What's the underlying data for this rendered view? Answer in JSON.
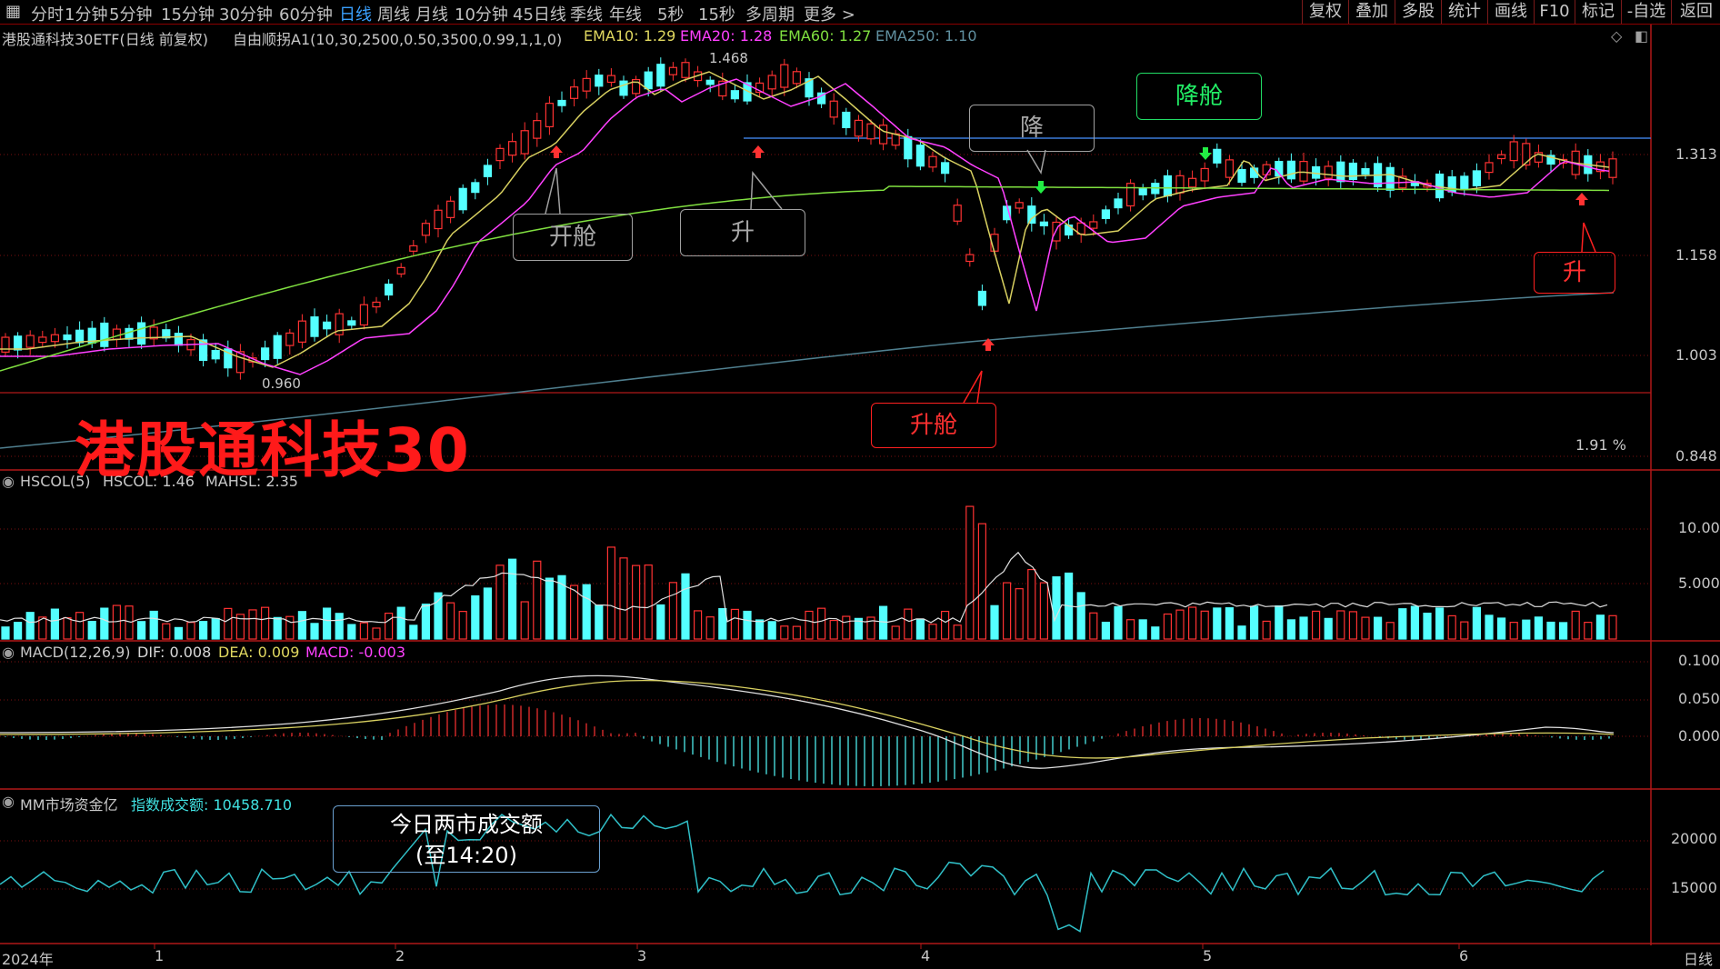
{
  "toolbar": {
    "periods": [
      "分时",
      "1分钟",
      "5分钟",
      "15分钟",
      "30分钟",
      "60分钟",
      "日线",
      "周线",
      "月线",
      "10分钟",
      "45日线",
      "季线",
      "年线",
      "5秒",
      "15秒",
      "多周期",
      "更多 >"
    ],
    "active": "日线",
    "right": [
      "复权",
      "叠加",
      "多股",
      "统计",
      "画线",
      "F10",
      "标记",
      "-自选",
      "返回"
    ]
  },
  "main_panel": {
    "title": "港股通科技30ETF(日线 前复权)",
    "indicator": "自由顺拐A1(10,30,2500,0.50,3500,0.99,1,1,0)",
    "ema10": "EMA10: 1.29",
    "ema20": "EMA20: 1.28",
    "ema60": "EMA60: 1.27",
    "ema250": "EMA250: 1.10",
    "y_labels": [
      "1.313",
      "1.158",
      "1.003",
      "0.848"
    ],
    "high_label": "1.468",
    "low_label": "0.960",
    "pct_label": "1.91 %",
    "watermark": "港股通科技30"
  },
  "annotations": {
    "open1": "开舱",
    "up1": "升",
    "down1": "降",
    "down_cabin": "降舱",
    "up_cabin": "升舱",
    "up2": "升"
  },
  "volume_panel": {
    "title": "HSCOL(5)",
    "hscol": "HSCOL: 1.46",
    "mahsl": "MAHSL: 2.35",
    "y_labels": [
      "10.00",
      "5.000"
    ]
  },
  "macd_panel": {
    "title": "MACD(12,26,9)",
    "dif": "DIF: 0.008",
    "dea": "DEA: 0.009",
    "macd": "MACD: -0.003",
    "y_labels": [
      "0.100",
      "0.050",
      "0.000"
    ]
  },
  "money_panel": {
    "title": "MM市场资金亿",
    "index_label": "指数成交额: 10458.710",
    "y_labels": [
      "20000",
      "15000"
    ],
    "note_line1": "今日两市成交额",
    "note_line2": "(至14:20)"
  },
  "x_axis": {
    "labels": [
      "2024年",
      "1",
      "2",
      "3",
      "4",
      "5",
      "6"
    ],
    "right_label": "日线"
  },
  "colors": {
    "up": "#ff3232",
    "down": "#54ffff",
    "ema10": "#d8d060",
    "ema20": "#ff40ff",
    "ema60": "#80e040",
    "ema250": "#508090",
    "hline": "#3a7ad8"
  }
}
